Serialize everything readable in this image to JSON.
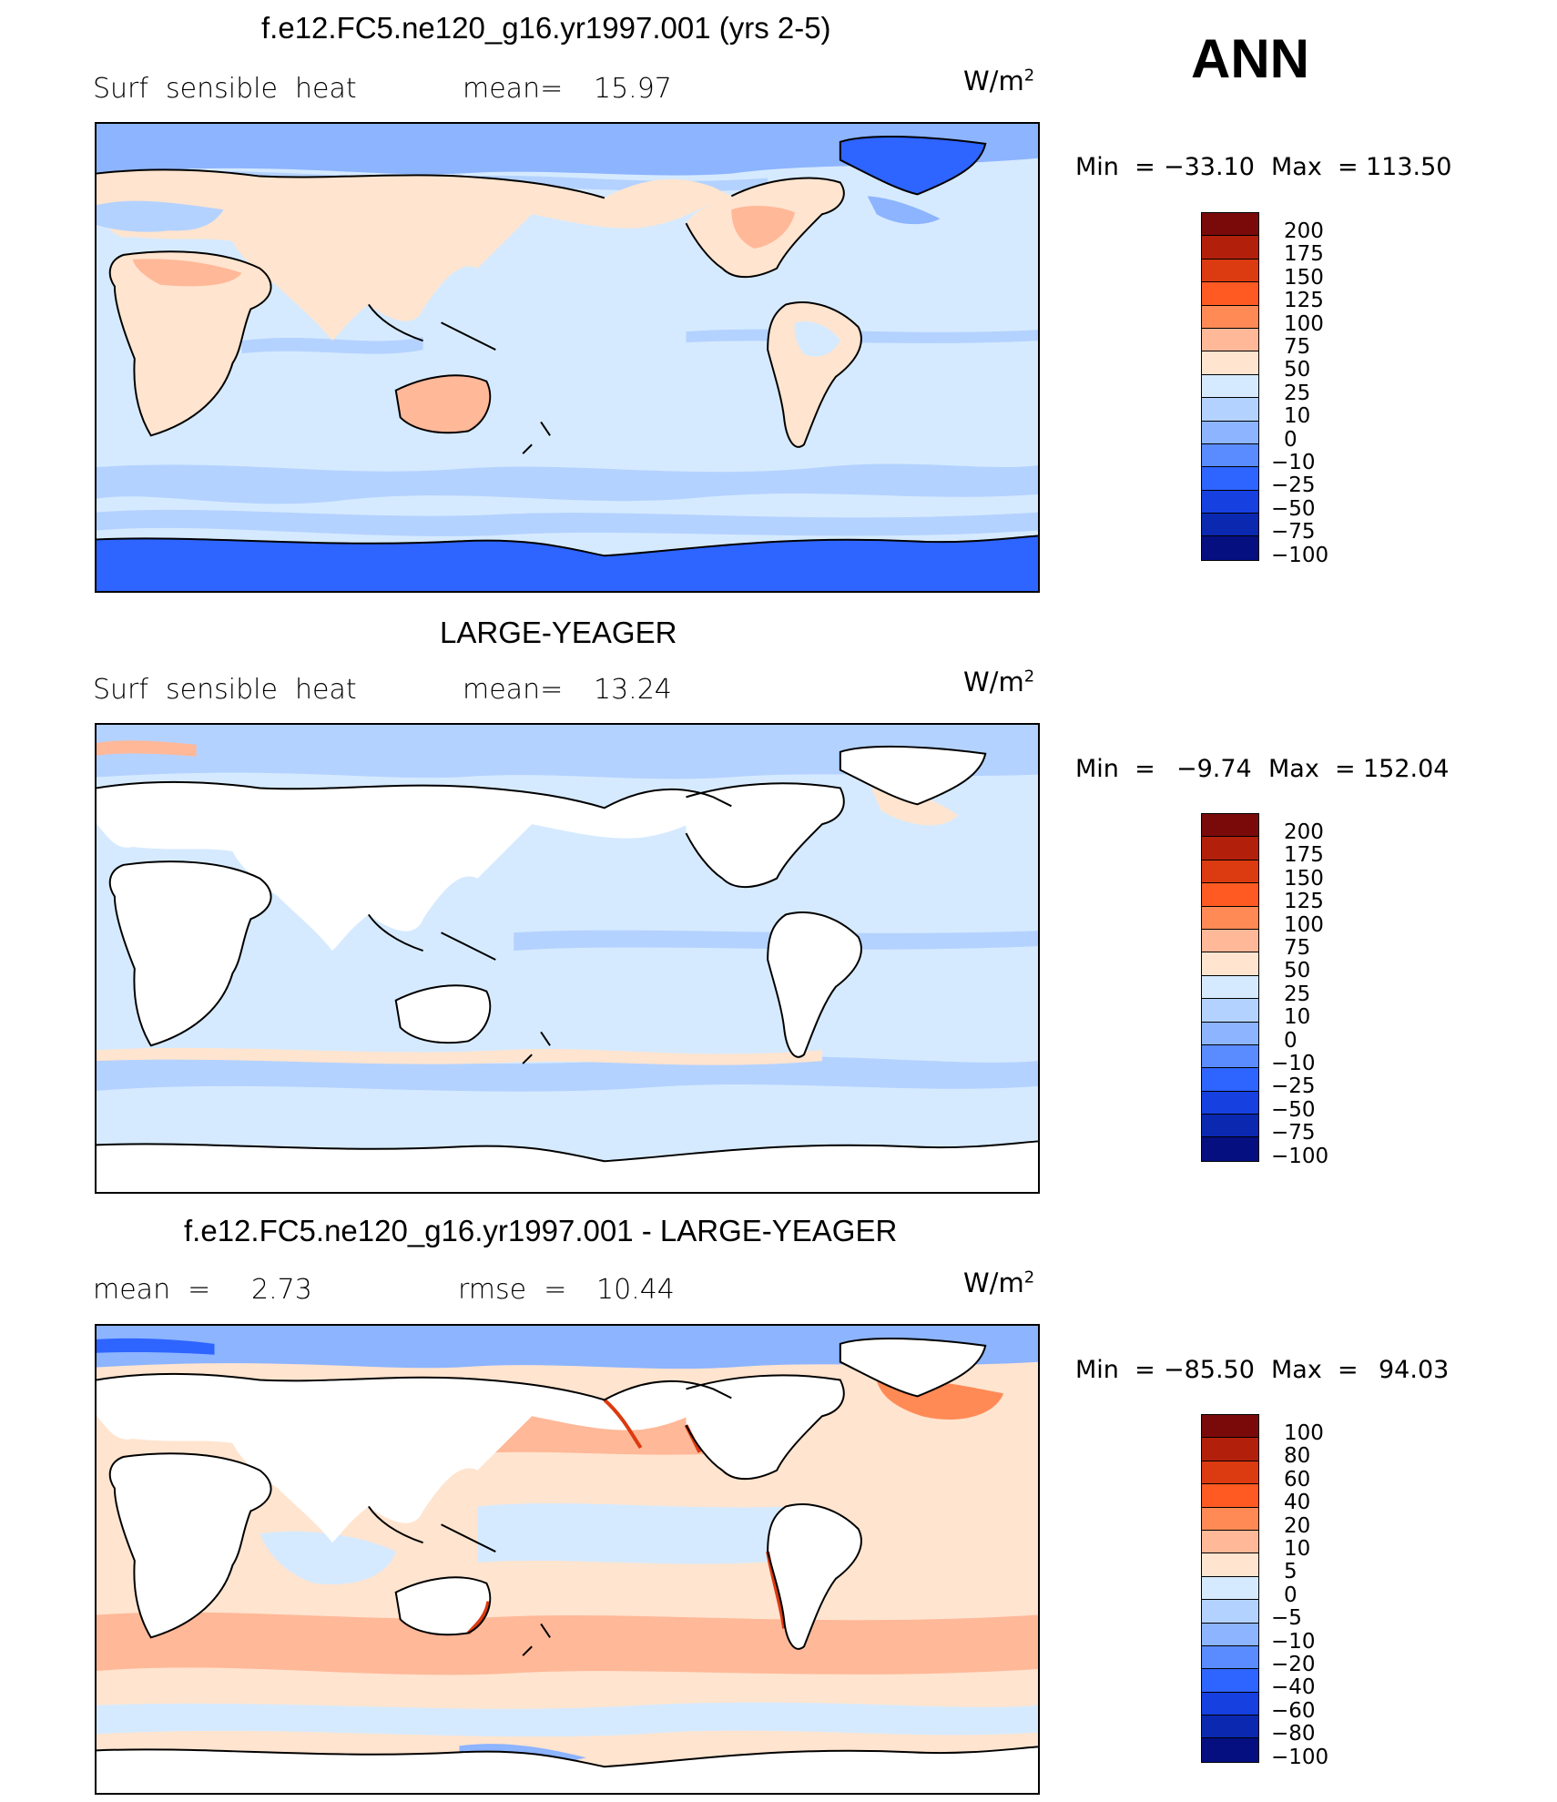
{
  "season": "ANN",
  "panels": [
    {
      "title": "f.e12.FC5.ne120_g16.yr1997.001 (yrs 2-5)",
      "left_label": "Surf  sensible  heat",
      "stat1_label": "mean=",
      "stat1_value": "15.97",
      "stat2_label": "",
      "stat2_value": "",
      "units": "W/m",
      "units_sup": "2",
      "min_label": "Min  =",
      "min_value": "−33.10",
      "max_label": "Max  =",
      "max_value": "113.50",
      "colorbar": {
        "colors": [
          "#7a0a0a",
          "#b2200c",
          "#dc3a10",
          "#ff5a22",
          "#ff8a55",
          "#ffb898",
          "#ffe4cf",
          "#d6eaff",
          "#b4d2ff",
          "#8cb4ff",
          "#5a8cff",
          "#2e64ff",
          "#1640e0",
          "#0a28b0",
          "#050f80"
        ],
        "labels": [
          "200",
          "175",
          "150",
          "125",
          "100",
          "75",
          "50",
          "25",
          "10",
          "0",
          "−10",
          "−25",
          "−50",
          "−75",
          "−100"
        ]
      },
      "land_filled": true
    },
    {
      "title": "LARGE-YEAGER",
      "left_label": "Surf  sensible  heat",
      "stat1_label": "mean=",
      "stat1_value": "13.24",
      "stat2_label": "",
      "stat2_value": "",
      "units": "W/m",
      "units_sup": "2",
      "min_label": "Min  =",
      "min_value": "−9.74",
      "max_label": "Max  =",
      "max_value": "152.04",
      "colorbar": {
        "colors": [
          "#7a0a0a",
          "#b2200c",
          "#dc3a10",
          "#ff5a22",
          "#ff8a55",
          "#ffb898",
          "#ffe4cf",
          "#d6eaff",
          "#b4d2ff",
          "#8cb4ff",
          "#5a8cff",
          "#2e64ff",
          "#1640e0",
          "#0a28b0",
          "#050f80"
        ],
        "labels": [
          "200",
          "175",
          "150",
          "125",
          "100",
          "75",
          "50",
          "25",
          "10",
          "0",
          "−10",
          "−25",
          "−50",
          "−75",
          "−100"
        ]
      },
      "land_filled": false
    },
    {
      "title": "f.e12.FC5.ne120_g16.yr1997.001 - LARGE-YEAGER",
      "left_label": "mean  =",
      "stat1_label": "2.73",
      "stat1_value": "",
      "stat2_label": "rmse  =",
      "stat2_value": "10.44",
      "units": "W/m",
      "units_sup": "2",
      "min_label": "Min  =",
      "min_value": "−85.50",
      "max_label": "Max  =",
      "max_value": "94.03",
      "colorbar": {
        "colors": [
          "#7a0a0a",
          "#b2200c",
          "#dc3a10",
          "#ff5a22",
          "#ff8a55",
          "#ffb898",
          "#ffe4cf",
          "#d6eaff",
          "#b4d2ff",
          "#8cb4ff",
          "#5a8cff",
          "#2e64ff",
          "#1640e0",
          "#0a28b0",
          "#050f80"
        ],
        "labels": [
          "100",
          "80",
          "60",
          "40",
          "20",
          "10",
          "5",
          "0",
          "−5",
          "−10",
          "−20",
          "−40",
          "−60",
          "−80",
          "−100"
        ]
      },
      "land_filled": false
    }
  ],
  "colors": {
    "ocean_light_blue": "#d6eaff",
    "ocean_mid_blue": "#b4d2ff",
    "ocean_blue": "#8cb4ff",
    "antarctic_blue": "#2e64ff",
    "land_peach": "#ffe4cf",
    "positive_orange": "#ffb898",
    "coast_red": "#dc3a10"
  }
}
